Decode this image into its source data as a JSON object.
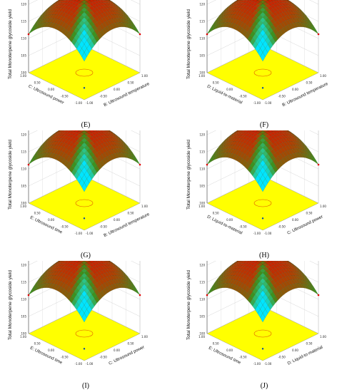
{
  "chart_data": [
    {
      "type": "surface3d",
      "panel": "(E)",
      "zlabel": "Total Monoterpene glycoside yield",
      "zticks": [
        "125",
        "120",
        "115",
        "110",
        "105",
        "100"
      ],
      "xlabel": "C: Ultrosound power",
      "ylabel": "B: Ultrosound temperature",
      "xticks": [
        "1.00",
        "0.50",
        "0.00",
        "-0.50",
        "-1.00"
      ],
      "yticks": [
        "-1.00",
        "-0.50",
        "0.00",
        "0.50",
        "1.00"
      ],
      "xlim": [
        -1,
        1
      ],
      "ylim": [
        -1,
        1
      ],
      "zlim": [
        100,
        125
      ],
      "peak": {
        "x": 0,
        "y": 0,
        "z": 122
      },
      "colors": [
        "#00e5ff",
        "#2ec27e",
        "#3d8f1a",
        "#b04000",
        "#e60000"
      ],
      "floor_color": "#ffff00"
    },
    {
      "type": "surface3d",
      "panel": "(F)",
      "zlabel": "Total Monoterpene glycoside yield",
      "zticks": [
        "125",
        "120",
        "115",
        "110",
        "105",
        "100"
      ],
      "xlabel": "D: Liquid-to-material",
      "ylabel": "B: Ultrosound temperature",
      "xticks": [
        "1.00",
        "0.50",
        "0.00",
        "-0.50",
        "-1.00"
      ],
      "yticks": [
        "-1.00",
        "-0.50",
        "0.00",
        "0.50",
        "1.00"
      ],
      "xlim": [
        -1,
        1
      ],
      "ylim": [
        -1,
        1
      ],
      "zlim": [
        100,
        125
      ],
      "peak": {
        "x": 0,
        "y": 0,
        "z": 122
      },
      "colors": [
        "#00e5ff",
        "#2ec27e",
        "#3d8f1a",
        "#b04000",
        "#e60000"
      ],
      "floor_color": "#ffff00"
    },
    {
      "type": "surface3d",
      "panel": "(G)",
      "zlabel": "Total Monoterpene glycoside yield",
      "zticks": [
        "125",
        "120",
        "115",
        "110",
        "105",
        "100"
      ],
      "xlabel": "E: Ultrosound time",
      "ylabel": "B: Ultrosound temperature",
      "xticks": [
        "1.00",
        "0.50",
        "0.00",
        "-0.50",
        "-1.00"
      ],
      "yticks": [
        "-1.00",
        "-0.50",
        "0.00",
        "0.50",
        "1.00"
      ],
      "xlim": [
        -1,
        1
      ],
      "ylim": [
        -1,
        1
      ],
      "zlim": [
        100,
        125
      ],
      "peak": {
        "x": 0,
        "y": 0,
        "z": 122
      },
      "colors": [
        "#00e5ff",
        "#2ec27e",
        "#3d8f1a",
        "#b04000",
        "#e60000"
      ],
      "floor_color": "#ffff00"
    },
    {
      "type": "surface3d",
      "panel": "(H)",
      "zlabel": "Total Monoterpene glycoside yield",
      "zticks": [
        "125",
        "120",
        "115",
        "110",
        "105",
        "100"
      ],
      "xlabel": "D: Liquid-to-material",
      "ylabel": "C: Ultrosound power",
      "xticks": [
        "1.00",
        "0.50",
        "0.00",
        "-0.50",
        "-1.00"
      ],
      "yticks": [
        "-1.00",
        "-0.50",
        "0.00",
        "0.50",
        "1.00"
      ],
      "xlim": [
        -1,
        1
      ],
      "ylim": [
        -1,
        1
      ],
      "zlim": [
        100,
        125
      ],
      "peak": {
        "x": 0,
        "y": 0,
        "z": 122
      },
      "colors": [
        "#00e5ff",
        "#2ec27e",
        "#3d8f1a",
        "#b04000",
        "#e60000"
      ],
      "floor_color": "#ffff00"
    },
    {
      "type": "surface3d",
      "panel": "(I)",
      "zlabel": "Total Monoterpene glycoside yield",
      "zticks": [
        "125",
        "120",
        "115",
        "110",
        "105",
        "100"
      ],
      "xlabel": "E: Ultrosound time",
      "ylabel": "C: Ultrosound power",
      "xticks": [
        "1.00",
        "0.50",
        "0.00",
        "-0.50",
        "-1.00"
      ],
      "yticks": [
        "-1.00",
        "-0.50",
        "0.00",
        "0.50",
        "1.00"
      ],
      "xlim": [
        -1,
        1
      ],
      "ylim": [
        -1,
        1
      ],
      "zlim": [
        100,
        125
      ],
      "peak": {
        "x": 0,
        "y": 0,
        "z": 122
      },
      "colors": [
        "#00e5ff",
        "#2ec27e",
        "#3d8f1a",
        "#b04000",
        "#e60000"
      ],
      "floor_color": "#ffff00"
    },
    {
      "type": "surface3d",
      "panel": "(J)",
      "zlabel": "Total Monoterpene glycoside yield",
      "zticks": [
        "125",
        "120",
        "115",
        "110",
        "105",
        "100"
      ],
      "xlabel": "E: Ultrosound time",
      "ylabel": "D: Liquid-to-material",
      "xticks": [
        "1.00",
        "0.50",
        "0.00",
        "-0.50",
        "-1.00"
      ],
      "yticks": [
        "-1.00",
        "-0.50",
        "0.00",
        "0.50",
        "1.00"
      ],
      "xlim": [
        -1,
        1
      ],
      "ylim": [
        -1,
        1
      ],
      "zlim": [
        100,
        125
      ],
      "peak": {
        "x": 0,
        "y": 0,
        "z": 122
      },
      "colors": [
        "#00e5ff",
        "#2ec27e",
        "#3d8f1a",
        "#b04000",
        "#e60000"
      ],
      "floor_color": "#ffff00"
    }
  ]
}
